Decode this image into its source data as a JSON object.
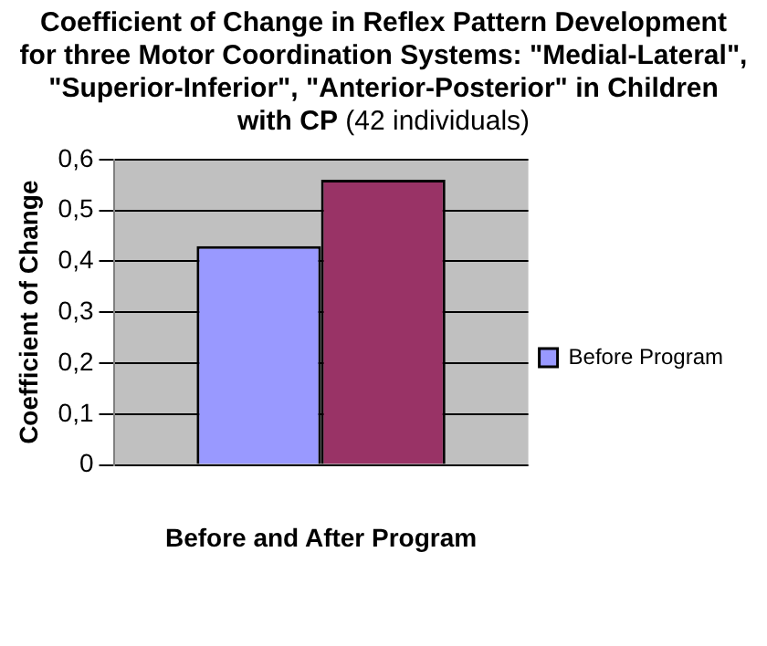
{
  "chart_data": {
    "type": "bar",
    "title": "Coefficient of Change in Reflex Pattern Development for three Motor Coordination Systems: \"Medial-Lateral\", \"Superior-Inferior\", \"Anterior-Posterior\" in Children with CP",
    "subtitle": "(42 individuals)",
    "xlabel": "Before and After Program",
    "ylabel": "Coefficient of Change",
    "categories": [
      null
    ],
    "series": [
      {
        "name": "Before Program",
        "color": "#9999ff",
        "values": [
          0.43
        ]
      },
      {
        "color": "#993366",
        "values": [
          0.56
        ]
      }
    ],
    "ylim": [
      0,
      0.6
    ],
    "yticks": [
      0,
      {
        "value": 0.1,
        "label": "0,1"
      },
      {
        "value": 0.2,
        "label": "0,2"
      },
      {
        "value": 0.3,
        "label": "0,3"
      },
      {
        "value": 0.4,
        "label": "0,4"
      },
      {
        "value": 0.5,
        "label": "0,5"
      },
      {
        "value": 0.6,
        "label": "0,6"
      }
    ],
    "grid": "y",
    "legend": "right"
  }
}
